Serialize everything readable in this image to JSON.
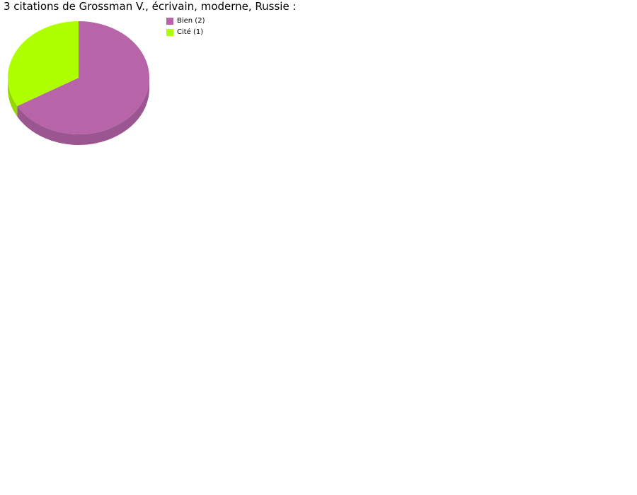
{
  "chart_data": {
    "type": "pie",
    "title": "3 citations de Grossman V., écrivain, moderne, Russie :",
    "slices": [
      {
        "label": "Bien (2)",
        "value": 2,
        "color": "#b764a9",
        "side_color": "#9b5590"
      },
      {
        "label": "Cité (1)",
        "value": 1,
        "color": "#aeff00",
        "side_color": "#93d800"
      }
    ],
    "legend_position": "top-right",
    "style": "3d"
  }
}
